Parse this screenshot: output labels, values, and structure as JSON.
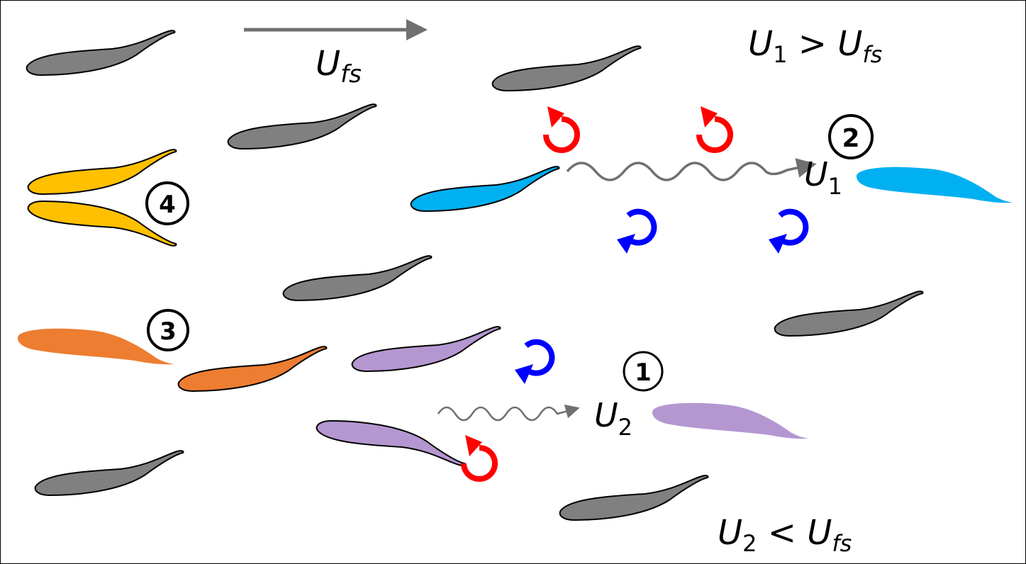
{
  "labels": {
    "free_stream": {
      "main": "U",
      "sub": "fs"
    },
    "u1_vs_ufs": {
      "u": "U",
      "sub1": "1",
      "op": " > ",
      "u2": "U",
      "sub2": "fs"
    },
    "u2_vs_ufs": {
      "u": "U",
      "sub1": "2",
      "op": " < ",
      "u2": "U",
      "sub2": "fs"
    },
    "u1": {
      "main": "U",
      "sub": "1"
    },
    "u2": {
      "main": "U",
      "sub": "2"
    }
  },
  "markers": {
    "m1": "1",
    "m2": "2",
    "m3": "3",
    "m4": "4"
  },
  "colors": {
    "gray_fish": "#808080",
    "yellow_fish": "#FFC000",
    "orange_fish": "#ED7D31",
    "blue_fish": "#00B0F0",
    "purple_fish": "#B497D0",
    "clockwise_vortex": "#FF0000",
    "counterclockwise_vortex": "#0000FF",
    "arrow": "#707070"
  }
}
